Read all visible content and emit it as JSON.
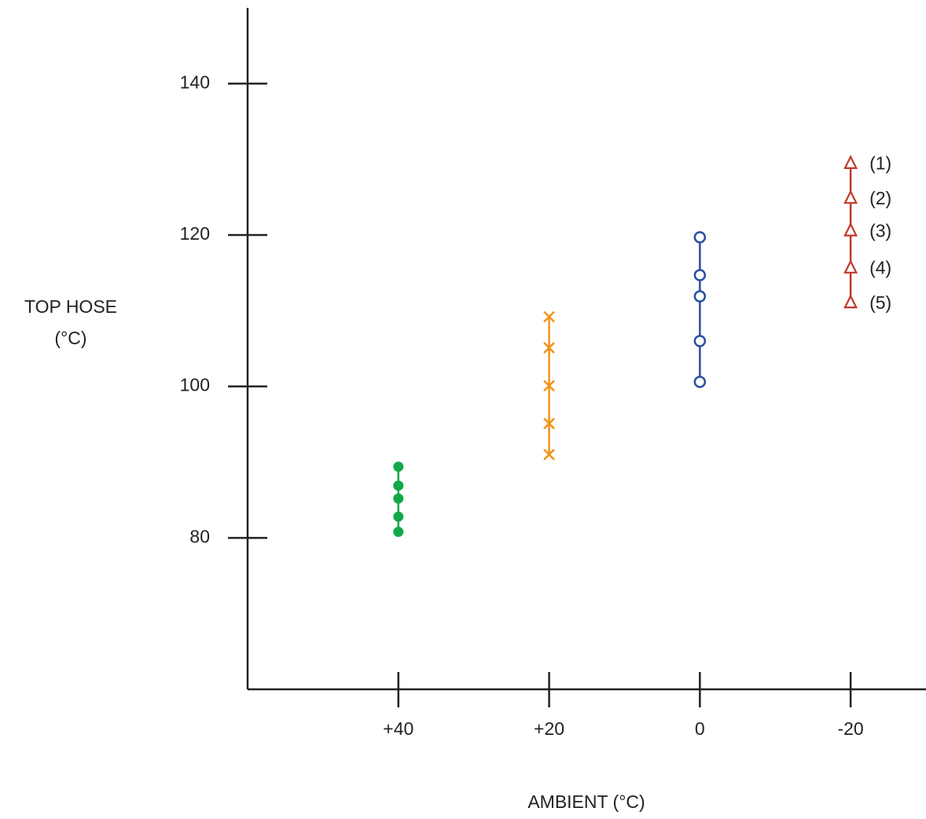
{
  "chart_data": {
    "type": "scatter",
    "y_label": [
      "TOP HOSE",
      "(°C)"
    ],
    "x_label": "AMBIENT (°C)",
    "xlim": [
      60,
      -30
    ],
    "xticks": [
      {
        "value": 40,
        "label": "+40"
      },
      {
        "value": 20,
        "label": "+20"
      },
      0,
      -20
    ],
    "ylim": [
      60,
      150
    ],
    "yticks": [
      80,
      100,
      120,
      140
    ],
    "grid": false,
    "series": [
      {
        "color": "#12a84a",
        "marker": "filled-circle",
        "x": [
          40,
          40,
          40,
          40,
          40
        ],
        "values": [
          89.4,
          86.9,
          85.2,
          82.8,
          80.8
        ]
      },
      {
        "color": "#f39219",
        "marker": "cross",
        "x": [
          20,
          20,
          20,
          20,
          20
        ],
        "values": [
          109.2,
          105.1,
          100.1,
          95.1,
          91.0
        ]
      },
      {
        "color": "#2a4f9f",
        "marker": "circle",
        "x": [
          0,
          0,
          0,
          0,
          0
        ],
        "values": [
          119.7,
          114.7,
          111.9,
          106.0,
          100.6
        ]
      },
      {
        "color": "#c0392b",
        "marker": "triangle",
        "x": [
          -20,
          -20,
          -20,
          -20,
          -20
        ],
        "values": [
          129.5,
          124.9,
          120.6,
          115.7,
          111.1
        ],
        "point_labels": [
          "(1)",
          "(2)",
          "(3)",
          "(4)",
          "(5)"
        ]
      }
    ]
  }
}
